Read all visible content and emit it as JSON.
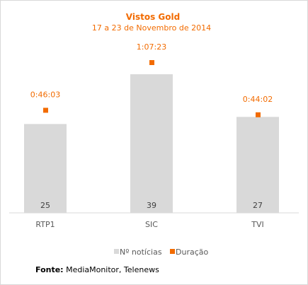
{
  "chart_data": {
    "type": "bar",
    "title": "Vistos Gold",
    "subtitle": "17 a 23 de Novembro de 2014",
    "categories": [
      "RTP1",
      "SIC",
      "TVI"
    ],
    "series": [
      {
        "name": "Nº notícias",
        "type": "bar",
        "values": [
          25,
          39,
          27
        ],
        "color": "#d9d9d9"
      },
      {
        "name": "Duração",
        "type": "marker",
        "values": [
          "0:46:03",
          "1:07:23",
          "0:44:02"
        ],
        "values_seconds": [
          2763,
          4043,
          2642
        ],
        "color": "#f26b00"
      }
    ],
    "legend_position": "bottom",
    "grid": false
  },
  "source": {
    "label": "Fonte:",
    "text": "MediaMonitor, Telenews"
  }
}
